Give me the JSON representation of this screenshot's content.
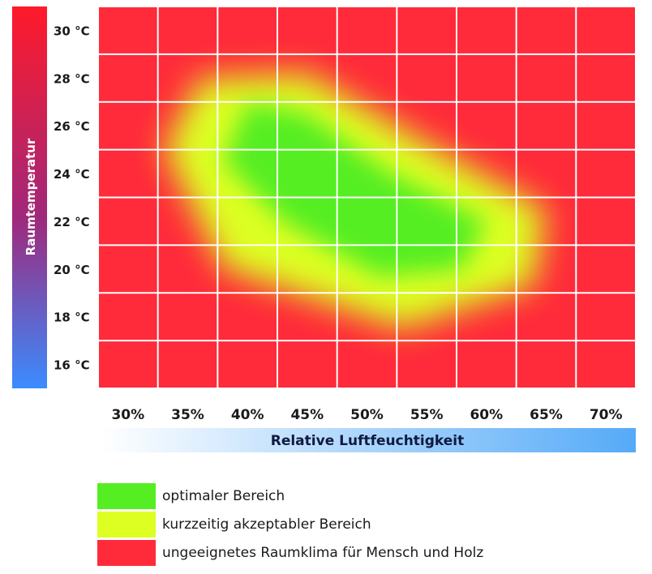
{
  "chart_data": {
    "type": "heatmap",
    "title": "",
    "xlabel": "Relative Luftfeuchtigkeit",
    "ylabel": "Raumtemperatur",
    "x_ticks": [
      "30%",
      "35%",
      "40%",
      "45%",
      "50%",
      "55%",
      "60%",
      "65%",
      "70%"
    ],
    "y_ticks": [
      "30 °C",
      "28 °C",
      "26 °C",
      "24 °C",
      "22 °C",
      "20 °C",
      "18 °C",
      "16 °C"
    ],
    "x_values": [
      30,
      35,
      40,
      45,
      50,
      55,
      60,
      65,
      70
    ],
    "y_values": [
      30,
      28,
      26,
      24,
      22,
      20,
      18,
      16
    ],
    "xlim": [
      27.5,
      72.5
    ],
    "ylim": [
      15,
      31
    ],
    "grid": true,
    "colors": {
      "optimal": "#55ee22",
      "acceptable": "#ddff22",
      "unsuitable": "#ff2a3a"
    },
    "optimal_zone": [
      {
        "humidity": 40,
        "temp": 27
      },
      {
        "humidity": 45,
        "temp": 26.5
      },
      {
        "humidity": 52,
        "temp": 24
      },
      {
        "humidity": 60,
        "temp": 22
      },
      {
        "humidity": 58,
        "temp": 20
      },
      {
        "humidity": 51,
        "temp": 19.7
      },
      {
        "humidity": 43,
        "temp": 22
      },
      {
        "humidity": 38,
        "temp": 24.5
      }
    ],
    "acceptable_zone": [
      {
        "humidity": 36,
        "temp": 28
      },
      {
        "humidity": 45,
        "temp": 28.2
      },
      {
        "humidity": 56,
        "temp": 25
      },
      {
        "humidity": 65,
        "temp": 22.5
      },
      {
        "humidity": 64,
        "temp": 19.3
      },
      {
        "humidity": 53,
        "temp": 17.5
      },
      {
        "humidity": 38,
        "temp": 20
      },
      {
        "humidity": 33,
        "temp": 25
      }
    ]
  },
  "legend": {
    "items": [
      {
        "label": "optimaler Bereich",
        "color": "#55ee22"
      },
      {
        "label": "kurzzeitig akzeptabler Bereich",
        "color": "#ddff22"
      },
      {
        "label": "ungeeignetes Raumklima für Mensch und Holz",
        "color": "#ff2a3a"
      }
    ]
  }
}
